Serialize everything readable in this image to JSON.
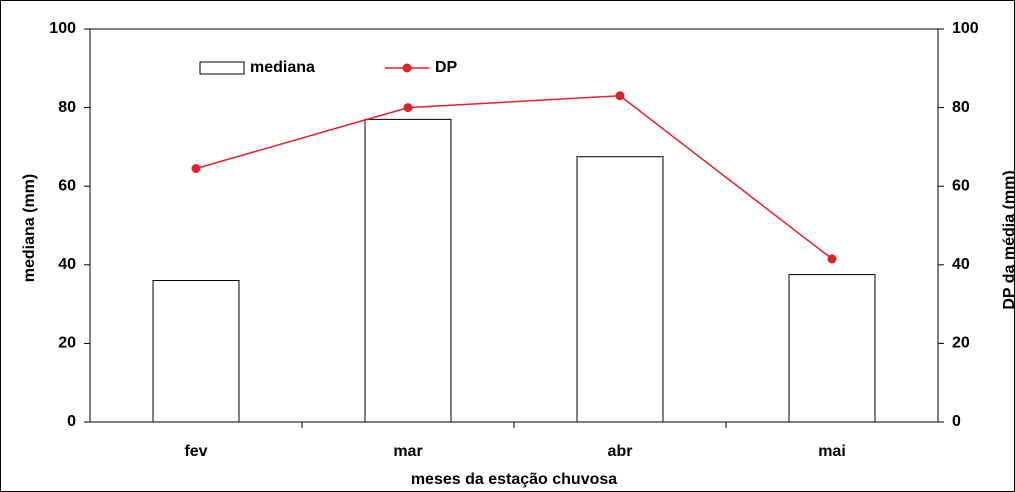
{
  "chart_data": {
    "type": "bar",
    "categories": [
      "fev",
      "mar",
      "abr",
      "mai"
    ],
    "series": [
      {
        "name": "mediana",
        "type": "bar",
        "color": "#ffffff",
        "values": [
          36,
          77,
          67.5,
          37.5
        ]
      },
      {
        "name": "DP",
        "type": "line",
        "color": "#e3202a",
        "axis": "y2",
        "values": [
          64.5,
          80,
          83,
          41.5
        ]
      }
    ],
    "xlabel": "meses da estação chuvosa",
    "ylabel": "mediana (mm)",
    "y2label": "DP da média (mm)",
    "ylim": [
      0,
      100
    ],
    "yticks": [
      0,
      20,
      40,
      60,
      80,
      100
    ],
    "y2lim": [
      0,
      100
    ],
    "y2ticks": [
      0,
      20,
      40,
      60,
      80,
      100
    ]
  }
}
